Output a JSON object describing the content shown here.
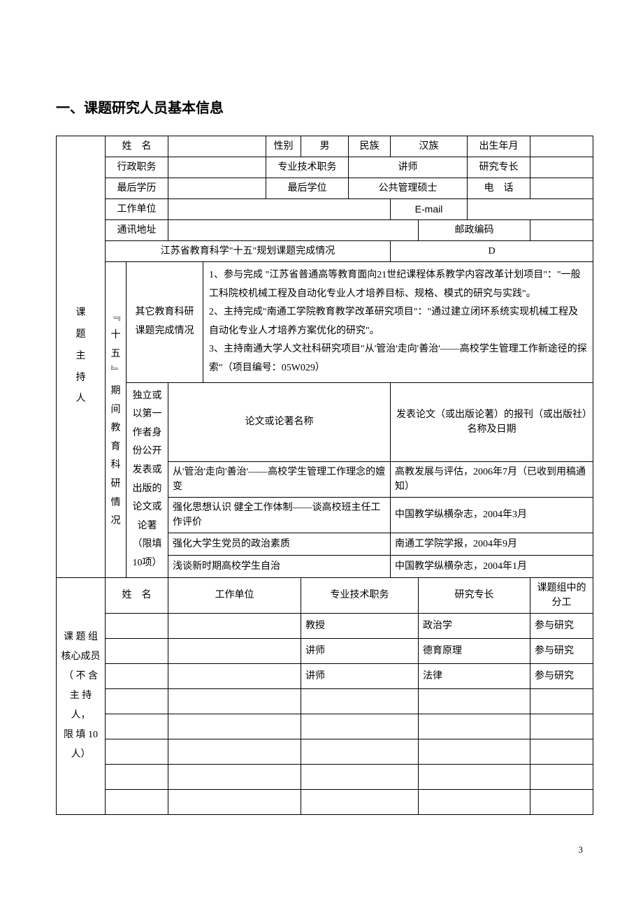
{
  "heading": "一、课题研究人员基本信息",
  "labels": {
    "host_block": "课题主持人",
    "name": "姓　名",
    "gender": "性别",
    "ethnicity": "民族",
    "birth": "出生年月",
    "admin_post": "行政职务",
    "pro_title": "专业技术职务",
    "research_field": "研究专长",
    "last_edu": "最后学历",
    "last_degree": "最后学位",
    "phone": "电　话",
    "work_unit": "工作单位",
    "email": "E-mail",
    "address": "通讯地址",
    "postcode": "邮政编码",
    "plan_status": "江苏省教育科学\"十五\"规划课题完成情况",
    "vertical_period": "﹃十五﹄期间教育科研情况",
    "other_projects_label": "其它教育科研课题完成情况",
    "pub_role": "独立或以第一作者身份公开发表或出版的论文或论著（限填10项）",
    "pub_title": "论文或论著名称",
    "pub_journal": "发表论文（或出版论著）的报刊（或出版社）名称及日期",
    "team_block": "课题组核心成员（不含主持人，限填10人）",
    "team_name": "姓　名",
    "team_unit": "工作单位",
    "team_title": "专业技术职务",
    "team_field": "研究专长",
    "team_division": "课题组中的分工"
  },
  "values": {
    "name": "",
    "gender": "男",
    "ethnicity": "汉族",
    "birth": "",
    "admin_post": "",
    "pro_title": "讲师",
    "research_field": "",
    "last_edu": "",
    "last_degree": "公共管理硕士",
    "phone": "",
    "work_unit": "",
    "email": "",
    "address": "",
    "postcode": "",
    "plan_grade": "D"
  },
  "other_projects_text": "1、参与完成 \"江苏省普通高等教育面向21世纪课程体系教学内容改革计划项目\"：\"一般工科院校机械工程及自动化专业人才培养目标、规格、模式的研究与实践\"。\n2、主持完成\"南通工学院教育教学改革研究项目\"：\"通过建立闭环系统实现机械工程及自动化专业人才培养方案优化的研究\"。\n3、主持南通大学人文社科研究项目\"从'管治'走向'善治'——高校学生管理工作新途径的探索\"（项目编号：05W029）",
  "publications": [
    {
      "title": "从'管治'走向'善治'——高校学生管理工作理念的嬗变",
      "journal": "高教发展与评估，2006年7月（已收到用稿通知）"
    },
    {
      "title": "强化思想认识 健全工作体制——谈高校班主任工作评价",
      "journal": "中国教学纵横杂志，2004年3月"
    },
    {
      "title": "强化大学生党员的政治素质",
      "journal": "南通工学院学报，2004年9月"
    },
    {
      "title": "浅谈新时期高校学生自治",
      "journal": "中国教学纵横杂志，2004年1月"
    },
    {
      "title": "",
      "journal": ""
    },
    {
      "title": "",
      "journal": ""
    },
    {
      "title": "",
      "journal": ""
    }
  ],
  "team": [
    {
      "name": "",
      "unit": "",
      "title": "教授",
      "field": "政治学",
      "division": "参与研究"
    },
    {
      "name": "",
      "unit": "",
      "title": "讲师",
      "field": "德育原理",
      "division": "参与研究"
    },
    {
      "name": "",
      "unit": "",
      "title": "讲师",
      "field": "法律",
      "division": "参与研究"
    },
    {
      "name": "",
      "unit": "",
      "title": "",
      "field": "",
      "division": ""
    },
    {
      "name": "",
      "unit": "",
      "title": "",
      "field": "",
      "division": ""
    },
    {
      "name": "",
      "unit": "",
      "title": "",
      "field": "",
      "division": ""
    },
    {
      "name": "",
      "unit": "",
      "title": "",
      "field": "",
      "division": ""
    },
    {
      "name": "",
      "unit": "",
      "title": "",
      "field": "",
      "division": ""
    }
  ],
  "page_number": "3"
}
